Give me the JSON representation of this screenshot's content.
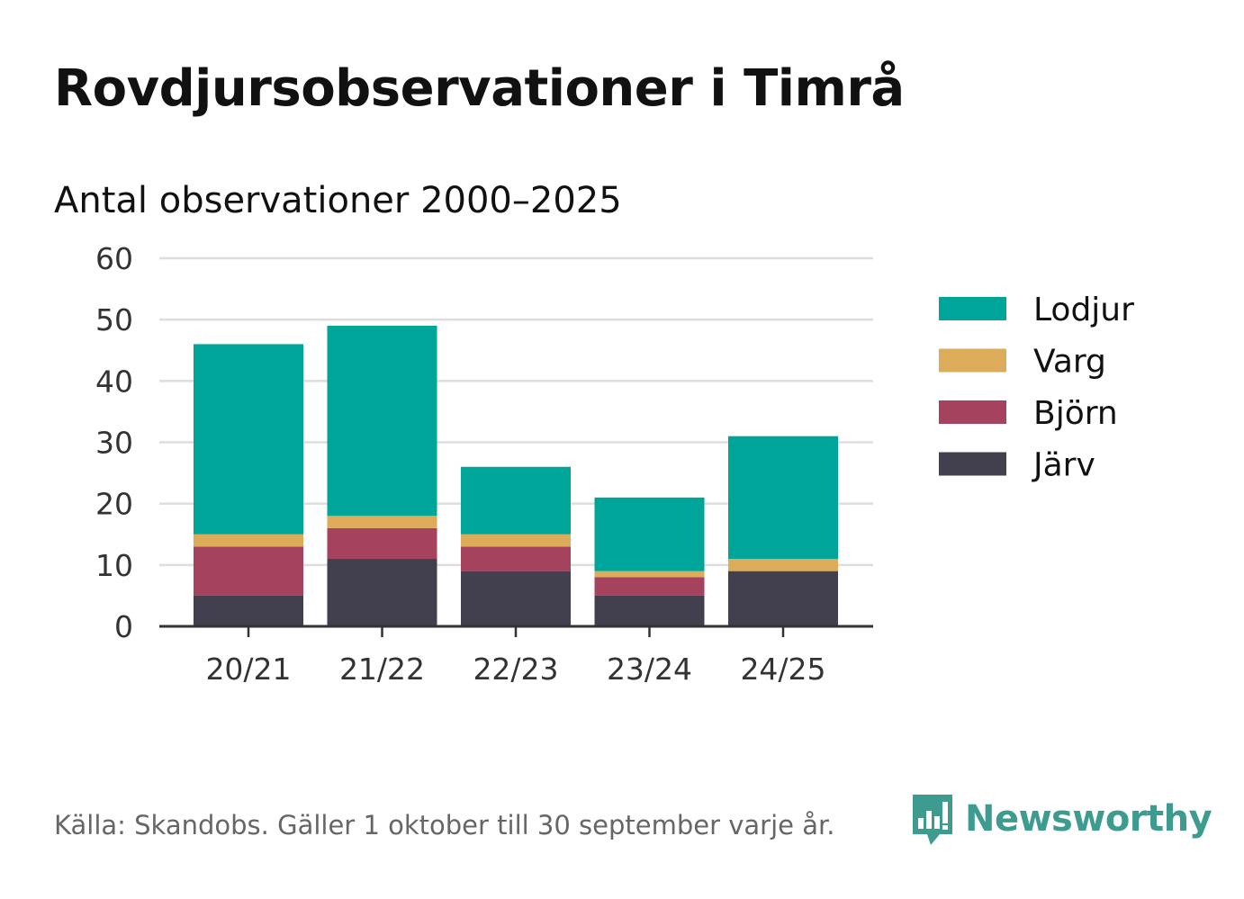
{
  "title": "Rovdjursobservationer i Timrå",
  "subtitle": "Antal observationer 2000–2025",
  "source": "Källa: Skandobs. Gäller 1 oktober till 30 september varje år.",
  "brand": "Newsworthy",
  "chart_data": {
    "type": "bar",
    "stacked": true,
    "title": "Rovdjursobservationer i Timrå",
    "subtitle": "Antal observationer 2000–2025",
    "xlabel": "",
    "ylabel": "",
    "ylim": [
      0,
      60
    ],
    "yticks": [
      0,
      10,
      20,
      30,
      40,
      50,
      60
    ],
    "grid": true,
    "legend_position": "right",
    "categories": [
      "20/21",
      "21/22",
      "22/23",
      "23/24",
      "24/25"
    ],
    "series": [
      {
        "name": "Järv",
        "color": "#42404f",
        "values": [
          5,
          11,
          9,
          5,
          9
        ]
      },
      {
        "name": "Björn",
        "color": "#a5425e",
        "values": [
          8,
          5,
          4,
          3,
          0
        ]
      },
      {
        "name": "Varg",
        "color": "#ddac5a",
        "values": [
          2,
          2,
          2,
          1,
          2
        ]
      },
      {
        "name": "Lodjur",
        "color": "#00a59a",
        "values": [
          31,
          31,
          11,
          12,
          20
        ]
      }
    ],
    "legend_order": [
      "Lodjur",
      "Varg",
      "Björn",
      "Järv"
    ]
  }
}
